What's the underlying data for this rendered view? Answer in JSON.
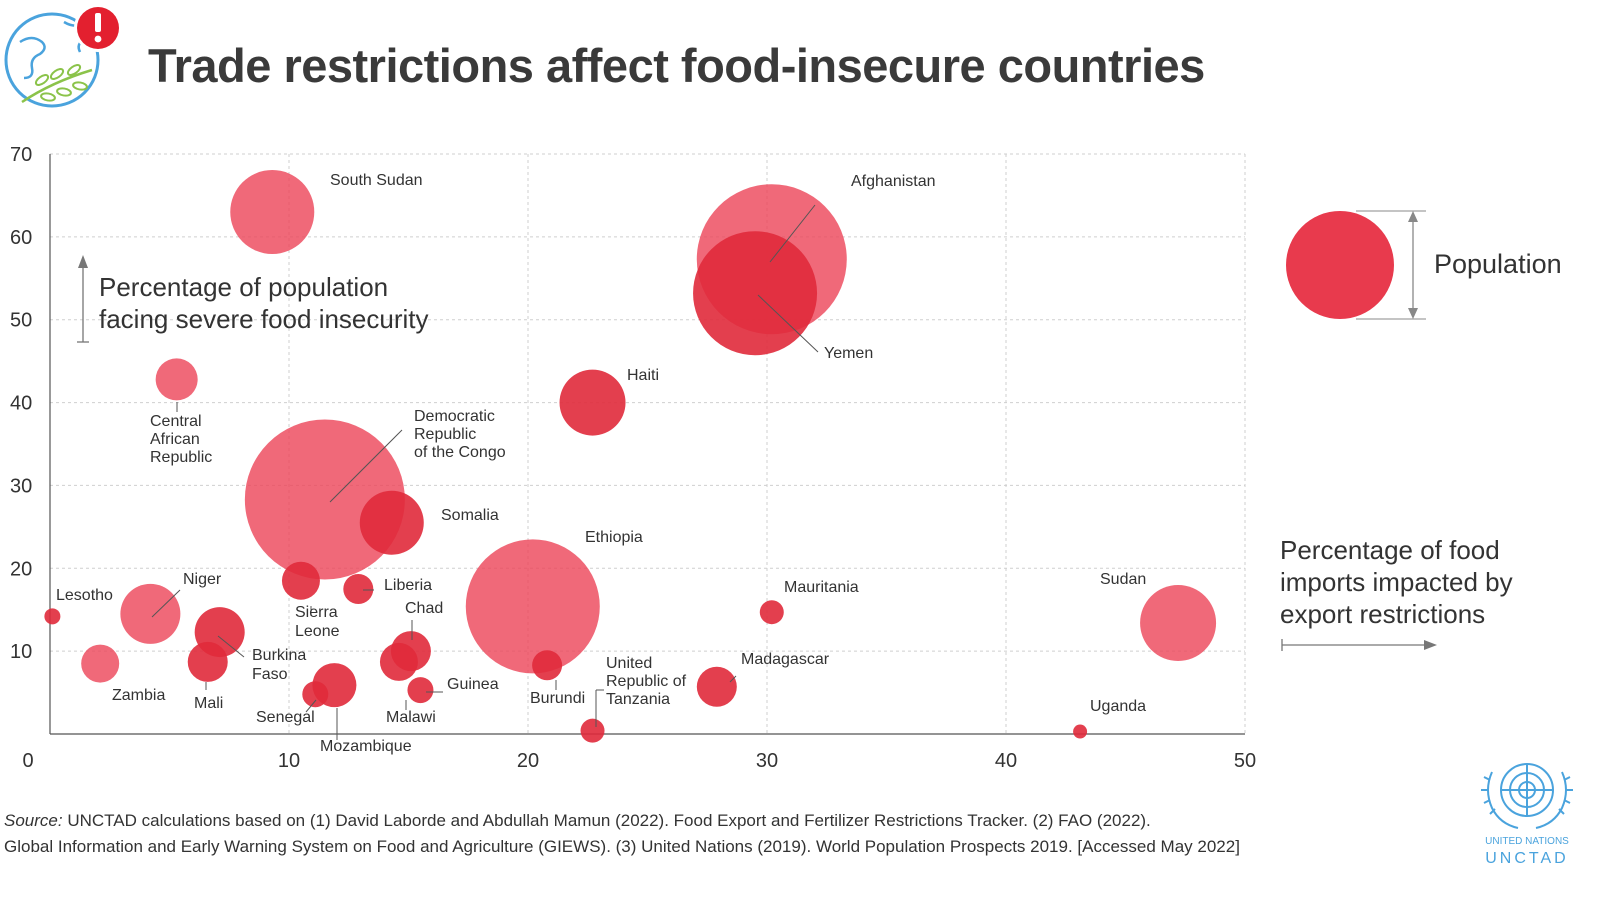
{
  "header": {
    "title": "Trade restrictions affect food-insecure countries"
  },
  "colors": {
    "bubble": "#ec4457",
    "bubble_dark": "#e02a3b",
    "grid": "#cfcfcf",
    "axis": "#555555",
    "logo_blue": "#4aa3dd",
    "logo_green": "#8bc34a",
    "alert_red": "#e3202f"
  },
  "icons": {
    "globe": "globe-leaves-icon",
    "alert": "exclamation-alert-icon",
    "un": "un-emblem-icon"
  },
  "chart_data": {
    "type": "scatter",
    "title": "Trade restrictions affect food-insecure countries",
    "xlabel": "Percentage of food imports impacted by export restrictions",
    "ylabel": "Percentage of population facing severe food insecurity",
    "size_legend": "Population",
    "xlim": [
      0,
      50
    ],
    "ylim": [
      0,
      70
    ],
    "x_ticks": [
      0,
      10,
      20,
      30,
      40,
      50
    ],
    "y_ticks": [
      10,
      20,
      30,
      40,
      50,
      60,
      70
    ],
    "grid": true,
    "points": [
      {
        "name": "South Sudan",
        "x": 9.3,
        "y": 63,
        "r": 42,
        "dark": false
      },
      {
        "name": "Afghanistan",
        "x": 30.2,
        "y": 57.3,
        "r": 75,
        "dark": false
      },
      {
        "name": "Yemen",
        "x": 29.5,
        "y": 53.2,
        "r": 62,
        "dark": true
      },
      {
        "name": "Central African Republic",
        "x": 5.3,
        "y": 42.8,
        "r": 21,
        "dark": false
      },
      {
        "name": "Haiti",
        "x": 22.7,
        "y": 40,
        "r": 33,
        "dark": true
      },
      {
        "name": "Democratic Republic of the Congo",
        "x": 11.5,
        "y": 28.3,
        "r": 80,
        "dark": false
      },
      {
        "name": "Somalia",
        "x": 14.3,
        "y": 25.5,
        "r": 32,
        "dark": true
      },
      {
        "name": "Ethiopia",
        "x": 20.2,
        "y": 15.4,
        "r": 67,
        "dark": false
      },
      {
        "name": "Lesotho",
        "x": 0.1,
        "y": 14.2,
        "r": 8,
        "dark": true
      },
      {
        "name": "Niger",
        "x": 4.2,
        "y": 14.5,
        "r": 30,
        "dark": false
      },
      {
        "name": "Sierra Leone",
        "x": 10.5,
        "y": 18.5,
        "r": 19,
        "dark": true
      },
      {
        "name": "Liberia",
        "x": 12.9,
        "y": 17.5,
        "r": 15,
        "dark": true
      },
      {
        "name": "Burkina Faso",
        "x": 7.1,
        "y": 12.3,
        "r": 25,
        "dark": true
      },
      {
        "name": "Chad",
        "x": 15.1,
        "y": 10,
        "r": 20,
        "dark": true
      },
      {
        "name": "Zambia",
        "x": 2.1,
        "y": 8.5,
        "r": 19,
        "dark": false
      },
      {
        "name": "Mali",
        "x": 6.6,
        "y": 8.7,
        "r": 20,
        "dark": true
      },
      {
        "name": "Malawi",
        "x": 14.6,
        "y": 8.7,
        "r": 19,
        "dark": true
      },
      {
        "name": "Guinea",
        "x": 15.5,
        "y": 5.3,
        "r": 13,
        "dark": true
      },
      {
        "name": "Mozambique",
        "x": 11.9,
        "y": 5.9,
        "r": 22,
        "dark": true
      },
      {
        "name": "Senegal",
        "x": 11.1,
        "y": 4.8,
        "r": 13,
        "dark": true
      },
      {
        "name": "Burundi",
        "x": 20.8,
        "y": 8.3,
        "r": 15,
        "dark": true
      },
      {
        "name": "United Republic of Tanzania",
        "x": 22.7,
        "y": 0.4,
        "r": 12,
        "dark": true
      },
      {
        "name": "Madagascar",
        "x": 27.9,
        "y": 5.7,
        "r": 20,
        "dark": true
      },
      {
        "name": "Mauritania",
        "x": 30.2,
        "y": 14.7,
        "r": 12,
        "dark": true
      },
      {
        "name": "Sudan",
        "x": 47.2,
        "y": 13.4,
        "r": 38,
        "dark": false
      },
      {
        "name": "Uganda",
        "x": 43.1,
        "y": 0.3,
        "r": 7,
        "dark": true
      }
    ]
  },
  "labels": {
    "south_sudan": "South Sudan",
    "afghanistan": "Afghanistan",
    "yemen": "Yemen",
    "haiti": "Haiti",
    "car": [
      "Central",
      "African",
      "Republic"
    ],
    "drc": [
      "Democratic",
      "Republic",
      "of the Congo"
    ],
    "somalia": "Somalia",
    "ethiopia": "Ethiopia",
    "lesotho": "Lesotho",
    "niger": "Niger",
    "sierra_leone": [
      "Sierra",
      "Leone"
    ],
    "liberia": "Liberia",
    "chad": "Chad",
    "burkina": [
      "Burkina",
      "Faso"
    ],
    "zambia": "Zambia",
    "mali": "Mali",
    "senegal": "Senegal",
    "mozambique": "Mozambique",
    "malawi": "Malawi",
    "guinea": "Guinea",
    "burundi": "Burundi",
    "tanzania": [
      "United",
      "Republic of",
      "Tanzania"
    ],
    "madagascar": "Madagascar",
    "mauritania": "Mauritania",
    "sudan": "Sudan",
    "uganda": "Uganda"
  },
  "axis_titles": {
    "y": [
      "Percentage of population",
      "facing severe food insecurity"
    ],
    "x": [
      "Percentage of food",
      "imports impacted by",
      "export restrictions"
    ],
    "legend": "Population"
  },
  "footer": {
    "source_label": "Source:",
    "source_line1": " UNCTAD calculations based on (1) David Laborde and Abdullah Mamun (2022). Food Export and Fertilizer Restrictions Tracker. (2) FAO (2022).",
    "source_line2": "Global Information and Early Warning System on Food and Agriculture (GIEWS). (3) United Nations (2019). World Population Prospects 2019. [Accessed May 2022]",
    "un_line1": "UNITED NATIONS",
    "un_line2": "UNCTAD"
  }
}
